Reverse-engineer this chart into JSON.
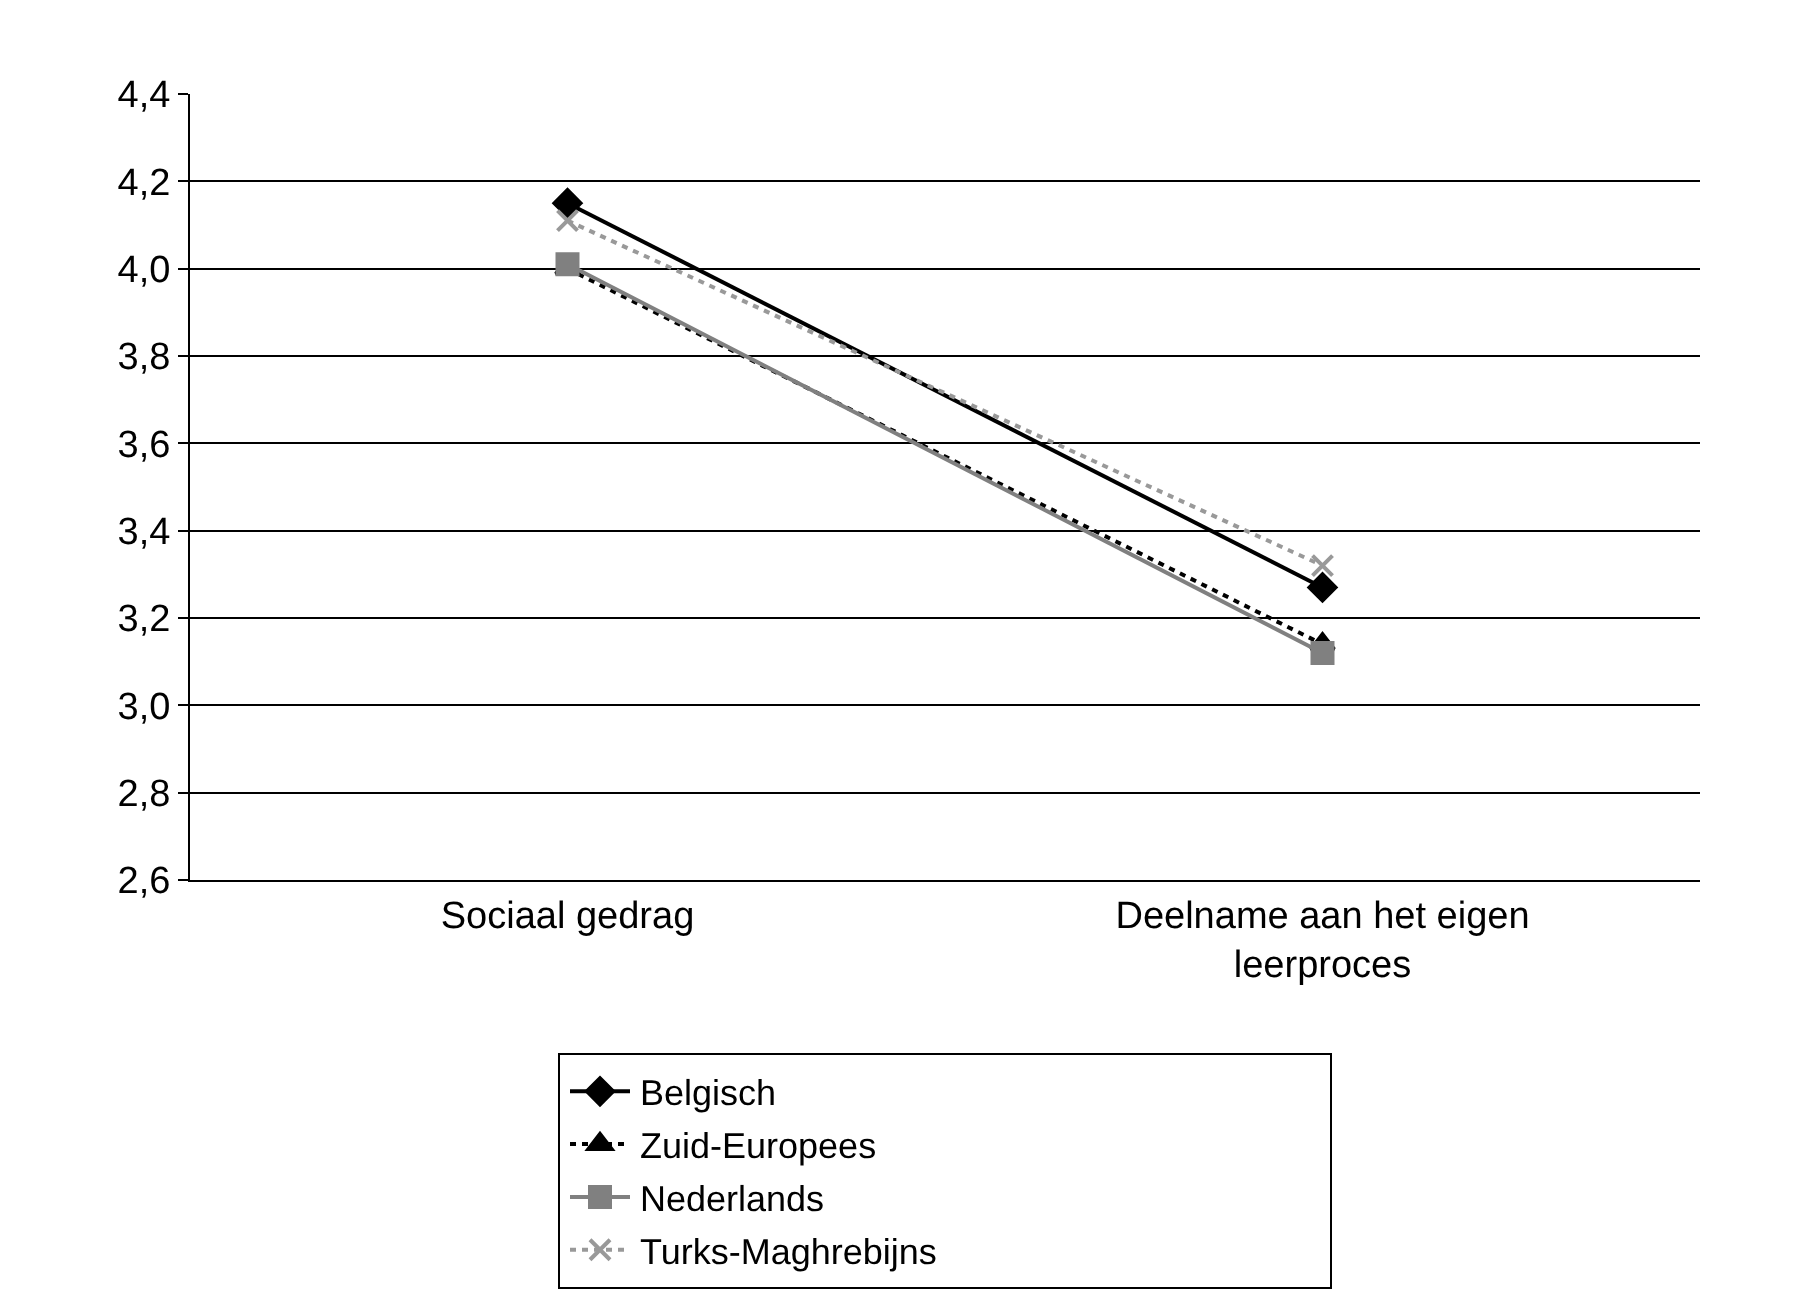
{
  "chart_data": {
    "type": "line",
    "categories": [
      "Sociaal gedrag",
      "Deelname aan het eigen leerproces"
    ],
    "series": [
      {
        "name": "Belgisch",
        "color": "#000000",
        "values": [
          4.15,
          3.27
        ],
        "marker": "diamond",
        "line_style": "solid"
      },
      {
        "name": "Nederlands",
        "color": "#808080",
        "values": [
          4.01,
          3.12
        ],
        "marker": "square",
        "line_style": "solid"
      },
      {
        "name": "Zuid-Europees",
        "color": "#000000",
        "values": [
          4.0,
          3.14
        ],
        "marker": "triangle",
        "line_style": "dotted"
      },
      {
        "name": "Turks-Maghrebijns",
        "color": "#999999",
        "values": [
          4.11,
          3.32
        ],
        "marker": "cross",
        "line_style": "dotted"
      }
    ],
    "ylim": [
      2.6,
      4.4
    ],
    "yticks": [
      {
        "value": 2.6,
        "label": "2,6"
      },
      {
        "value": 2.8,
        "label": "2,8"
      },
      {
        "value": 3.0,
        "label": "3,0"
      },
      {
        "value": 3.2,
        "label": "3,2"
      },
      {
        "value": 3.4,
        "label": "3,4"
      },
      {
        "value": 3.6,
        "label": "3,6"
      },
      {
        "value": 3.8,
        "label": "3,8"
      },
      {
        "value": 4.0,
        "label": "4,0"
      },
      {
        "value": 4.2,
        "label": "4,2"
      },
      {
        "value": 4.4,
        "label": "4,4"
      }
    ],
    "grid": "y",
    "legend": "bottom"
  }
}
